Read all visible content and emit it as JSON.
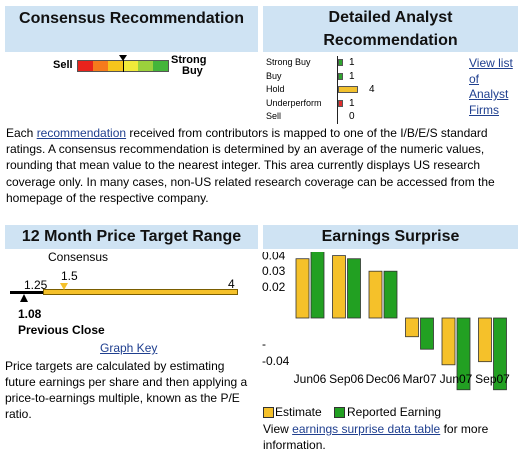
{
  "consensus": {
    "heading": "Consensus Recommendation",
    "scale_left": "Sell",
    "scale_right_line1": "Strong",
    "scale_right_line2": "Buy",
    "colors": [
      "#e8231c",
      "#f57a1c",
      "#f5c51c",
      "#f1ea3a",
      "#9bd13c",
      "#44b53a"
    ],
    "marker_level": 0.5
  },
  "detailed": {
    "heading_line1": "Detailed Analyst",
    "heading_line2": "Recommendation",
    "rows": [
      {
        "label": "Strong Buy",
        "count": "1",
        "value": 1,
        "color": "#2fa52f"
      },
      {
        "label": "Buy",
        "count": "1",
        "value": 1,
        "color": "#2fa52f"
      },
      {
        "label": "Hold",
        "count": "4",
        "value": 4,
        "color": "#f2c12e"
      },
      {
        "label": "Underperform",
        "count": "1",
        "value": 1,
        "color": "#e02c2c"
      },
      {
        "label": "Sell",
        "count": "0",
        "value": 0,
        "color": "#e02c2c"
      }
    ],
    "view_list_line1": "View list",
    "view_list_line2": "of",
    "view_list_line3": "Analyst",
    "view_list_line4": "Firms"
  },
  "description": {
    "lead": "Each ",
    "link": "recommendation",
    "rest": " received from contributors is mapped to one of the I/B/E/S standard ratings. A consensus recommendation is determined by an average of the numeric values, rounding that mean value to the nearest integer. This area currently displays US research coverage only. In many cases, non-US related research coverage can be accessed from the homepage of the respective company."
  },
  "price_target": {
    "heading": "12 Month Price Target Range",
    "consensus_label": "Consensus",
    "low": "1.25",
    "consensus": "1.5",
    "high": "4",
    "low_value": 1.25,
    "consensus_value": 1.5,
    "high_value": 4,
    "previous_close": "1.08",
    "previous_close_value": 1.08,
    "previous_close_label": "Previous Close",
    "graph_key": "Graph Key",
    "note": "Price targets are calculated by estimating future earnings per share and then applying a price-to-earnings multiple, known as the P/E ratio."
  },
  "earnings": {
    "heading": "Earnings Surprise",
    "legend_estimate": "Estimate",
    "legend_reported": "Reported Earning",
    "estimate_color": "#f5c12a",
    "reported_color": "#22a022",
    "footer_lead": "View ",
    "footer_link": "earnings surprise data table",
    "footer_rest": " for more information."
  },
  "chart_data": {
    "type": "bar",
    "title": "Earnings Surprise",
    "categories": [
      "Jun06",
      "Sep06",
      "Dec06",
      "Mar07",
      "Jun07",
      "Sep07"
    ],
    "series": [
      {
        "name": "Estimate",
        "values": [
          0.038,
          0.04,
          0.03,
          -0.012,
          -0.03,
          -0.028
        ]
      },
      {
        "name": "Reported Earning",
        "values": [
          0.046,
          0.038,
          0.03,
          -0.02,
          -0.046,
          -0.046
        ]
      }
    ],
    "y_ticks": [
      "0.04",
      "0.03",
      "0.02",
      "-",
      "-0.04"
    ],
    "ylim": [
      -0.05,
      0.05
    ],
    "legend": "bottom"
  }
}
